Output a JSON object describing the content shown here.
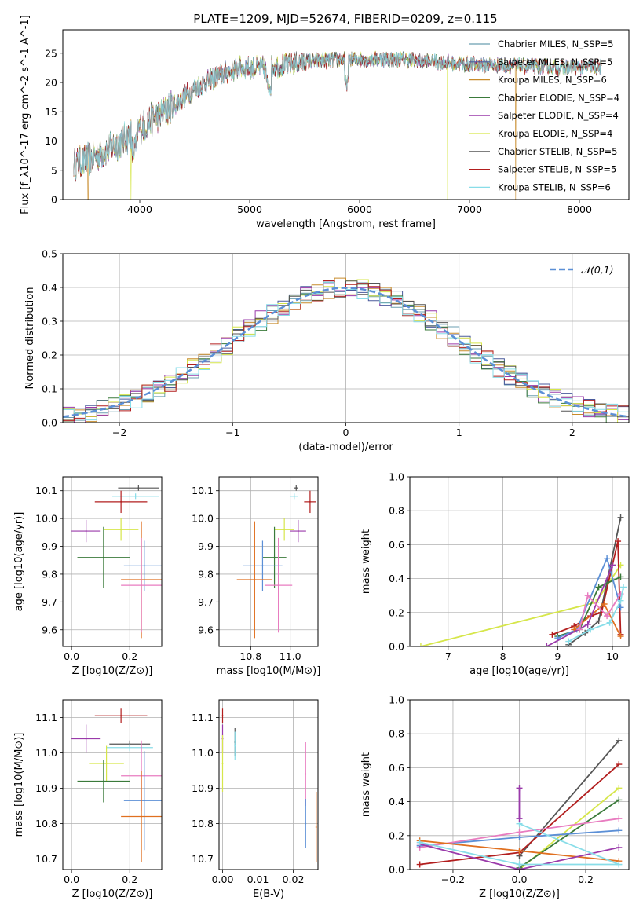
{
  "figure_title": "PLATE=1209, MJD=52674, FIBERID=0209, z=0.115",
  "chart_data": [
    {
      "type": "line",
      "id": "spectrum",
      "xlabel": "wavelength [Angstrom, rest frame]",
      "ylabel": "Flux [f_λ10^-17 erg cm^-2 s^-1 A^-1]",
      "xlim": [
        3300,
        8450
      ],
      "ylim": [
        0,
        29
      ],
      "xticks": [
        4000,
        5000,
        6000,
        7000,
        8000
      ],
      "yticks": [
        0,
        5,
        10,
        15,
        20,
        25
      ],
      "legend_position": "top-right",
      "series": [
        {
          "name": "Chabrier MILES, N_SSP=5",
          "color": "#6b9fb0"
        },
        {
          "name": "Salpeter MILES, N_SSP=5",
          "color": "#4a5a9c"
        },
        {
          "name": "Kroupa MILES, N_SSP=6",
          "color": "#c88b2a"
        },
        {
          "name": "Chabrier ELODIE, N_SSP=4",
          "color": "#3a7a3a"
        },
        {
          "name": "Salpeter ELODIE, N_SSP=4",
          "color": "#9a3aaa"
        },
        {
          "name": "Kroupa ELODIE, N_SSP=4",
          "color": "#d6e64a"
        },
        {
          "name": "Chabrier STELIB, N_SSP=5",
          "color": "#555555"
        },
        {
          "name": "Salpeter STELIB, N_SSP=5",
          "color": "#b21e1e"
        },
        {
          "name": "Kroupa STELIB, N_SSP=6",
          "color": "#88dde8"
        }
      ],
      "continuum": {
        "x": [
          3400,
          3500,
          3650,
          3800,
          3950,
          4100,
          4300,
          4500,
          4700,
          4900,
          5100,
          5300,
          5500,
          5700,
          5900,
          6100,
          6300,
          6500,
          6700,
          6900,
          7100,
          7300,
          7500,
          7700,
          7900,
          8100,
          8200
        ],
        "y": [
          6,
          6.5,
          8,
          9.5,
          11.5,
          13.5,
          16,
          19,
          21,
          22.5,
          22.5,
          23,
          23.5,
          23.8,
          24,
          24,
          24,
          23.8,
          23.5,
          23.2,
          23,
          23,
          22.8,
          22.6,
          22.5,
          22.6,
          22.6
        ]
      },
      "drops": [
        {
          "x": 3530,
          "series": "Kroupa MILES, N_SSP=6"
        },
        {
          "x": 3920,
          "series": "Kroupa ELODIE, N_SSP=4"
        },
        {
          "x": 6800,
          "series": "Kroupa ELODIE, N_SSP=4"
        },
        {
          "x": 7420,
          "series": "Kroupa MILES, N_SSP=6"
        }
      ]
    },
    {
      "type": "histogram",
      "id": "residuals",
      "xlabel": "(data-model)/error",
      "ylabel": "Normed distribution",
      "xlim": [
        -2.5,
        2.5
      ],
      "ylim": [
        0,
        0.5
      ],
      "xticks": [
        -2,
        -1,
        0,
        1,
        2
      ],
      "yticks": [
        0.0,
        0.1,
        0.2,
        0.3,
        0.4,
        0.5
      ],
      "grid": true,
      "legend_position": "top-right",
      "bin_width": 0.1,
      "reference": {
        "name": "𝒩(0,1)",
        "color": "#5b8fd6",
        "style": "dashed"
      }
    },
    {
      "type": "scatter",
      "id": "age-vs-Z",
      "xlabel": "Z [log10(Z/Z⊙)]",
      "ylabel": "age  [log10(age/yr)]",
      "xlim": [
        -0.03,
        0.31
      ],
      "ylim": [
        9.54,
        10.15
      ],
      "xticks": [
        0.0,
        0.2
      ],
      "yticks": [
        9.6,
        9.7,
        9.8,
        9.9,
        10.0,
        10.1
      ],
      "grid": true,
      "points": [
        {
          "x": 0.23,
          "y": 10.11,
          "xerr": 0.07,
          "yerr": 0.01,
          "color": "#555555"
        },
        {
          "x": 0.22,
          "y": 10.08,
          "xerr": 0.08,
          "yerr": 0.01,
          "color": "#88dde8"
        },
        {
          "x": 0.17,
          "y": 10.06,
          "xerr": 0.09,
          "yerr": 0.04,
          "color": "#b21e1e"
        },
        {
          "x": 0.17,
          "y": 9.96,
          "xerr": 0.06,
          "yerr": 0.04,
          "color": "#d6e64a"
        },
        {
          "x": 0.05,
          "y": 9.955,
          "xerr": 0.05,
          "yerr": 0.04,
          "color": "#9a3aaa"
        },
        {
          "x": 0.11,
          "y": 9.86,
          "xerr": 0.09,
          "yerr": 0.11,
          "color": "#3a7a3a"
        },
        {
          "x": 0.25,
          "y": 9.83,
          "xerr": 0.07,
          "yerr": 0.09,
          "color": "#5b8fd6"
        },
        {
          "x": 0.24,
          "y": 9.78,
          "xerr": 0.07,
          "yerr": 0.21,
          "color": "#e07020"
        },
        {
          "x": 0.24,
          "y": 9.76,
          "xerr": 0.07,
          "yerr": 0.17,
          "color": "#e87cc0"
        }
      ]
    },
    {
      "type": "scatter",
      "id": "age-vs-mass",
      "xlabel": "mass [log10(M/M⊙)]",
      "ylabel": "",
      "xlim": [
        10.64,
        11.14
      ],
      "ylim": [
        9.54,
        10.15
      ],
      "xticks": [
        10.8,
        11.0
      ],
      "yticks": [
        9.6,
        9.7,
        9.8,
        9.9,
        10.0,
        10.1
      ],
      "grid": true,
      "points": [
        {
          "x": 11.03,
          "y": 10.11,
          "xerr": 0.01,
          "yerr": 0.01,
          "color": "#555555"
        },
        {
          "x": 11.02,
          "y": 10.08,
          "xerr": 0.02,
          "yerr": 0.01,
          "color": "#88dde8"
        },
        {
          "x": 11.1,
          "y": 10.06,
          "xerr": 0.03,
          "yerr": 0.04,
          "color": "#b21e1e"
        },
        {
          "x": 10.97,
          "y": 9.96,
          "xerr": 0.05,
          "yerr": 0.04,
          "color": "#d6e64a"
        },
        {
          "x": 11.04,
          "y": 9.955,
          "xerr": 0.04,
          "yerr": 0.04,
          "color": "#9a3aaa"
        },
        {
          "x": 10.92,
          "y": 9.86,
          "xerr": 0.06,
          "yerr": 0.11,
          "color": "#3a7a3a"
        },
        {
          "x": 10.86,
          "y": 9.83,
          "xerr": 0.1,
          "yerr": 0.09,
          "color": "#5b8fd6"
        },
        {
          "x": 10.82,
          "y": 9.78,
          "xerr": 0.09,
          "yerr": 0.21,
          "color": "#e07020"
        },
        {
          "x": 10.94,
          "y": 9.76,
          "xerr": 0.07,
          "yerr": 0.17,
          "color": "#e87cc0"
        }
      ]
    },
    {
      "type": "line",
      "id": "weight-vs-age",
      "xlabel": "age  [log10(age/yr)]",
      "ylabel": "mass weight",
      "xlim": [
        6.3,
        10.3
      ],
      "ylim": [
        0,
        1
      ],
      "xticks": [
        7,
        8,
        9,
        10
      ],
      "yticks": [
        0.0,
        0.2,
        0.4,
        0.6,
        0.8,
        1.0
      ],
      "grid": true,
      "series": [
        {
          "color": "#d6e64a",
          "x": [
            6.5,
            9.7,
            10.15
          ],
          "y": [
            0.0,
            0.26,
            0.48
          ]
        },
        {
          "color": "#555555",
          "x": [
            9.2,
            9.5,
            9.75,
            10.15
          ],
          "y": [
            0.01,
            0.08,
            0.15,
            0.76
          ]
        },
        {
          "color": "#b21e1e",
          "x": [
            8.9,
            9.3,
            9.6,
            9.8,
            10.1,
            10.15
          ],
          "y": [
            0.07,
            0.12,
            0.18,
            0.2,
            0.62,
            0.07
          ]
        },
        {
          "color": "#3a7a3a",
          "x": [
            9.0,
            9.4,
            9.75,
            10.15
          ],
          "y": [
            0.06,
            0.1,
            0.35,
            0.41
          ]
        },
        {
          "color": "#5b8fd6",
          "x": [
            9.0,
            9.35,
            9.9,
            10.15
          ],
          "y": [
            0.05,
            0.1,
            0.52,
            0.23
          ]
        },
        {
          "color": "#e07020",
          "x": [
            9.3,
            9.85,
            10.15
          ],
          "y": [
            0.1,
            0.25,
            0.06
          ]
        },
        {
          "color": "#9a3aaa",
          "x": [
            8.8,
            9.55,
            10.0
          ],
          "y": [
            0.0,
            0.13,
            0.48
          ]
        },
        {
          "color": "#e87cc0",
          "x": [
            9.4,
            9.55,
            9.9,
            10.15
          ],
          "y": [
            0.1,
            0.3,
            0.18,
            0.31
          ]
        },
        {
          "color": "#88dde8",
          "x": [
            9.2,
            9.6,
            9.95,
            10.15,
            10.2
          ],
          "y": [
            0.03,
            0.1,
            0.14,
            0.27,
            0.35
          ]
        }
      ]
    },
    {
      "type": "scatter",
      "id": "mass-vs-Z",
      "xlabel": "Z [log10(Z/Z⊙)]",
      "ylabel": "mass [log10(M/M⊙)]",
      "xlim": [
        -0.03,
        0.31
      ],
      "ylim": [
        10.67,
        11.15
      ],
      "xticks": [
        0.0,
        0.2
      ],
      "yticks": [
        10.7,
        10.8,
        10.9,
        11.0,
        11.1
      ],
      "grid": true,
      "points": [
        {
          "x": 0.17,
          "y": 11.105,
          "xerr": 0.09,
          "yerr": 0.02,
          "color": "#b21e1e"
        },
        {
          "x": 0.05,
          "y": 11.04,
          "xerr": 0.05,
          "yerr": 0.04,
          "color": "#9a3aaa"
        },
        {
          "x": 0.2,
          "y": 11.025,
          "xerr": 0.07,
          "yerr": 0.01,
          "color": "#555555"
        },
        {
          "x": 0.2,
          "y": 11.015,
          "xerr": 0.08,
          "yerr": 0.01,
          "color": "#88dde8"
        },
        {
          "x": 0.12,
          "y": 10.97,
          "xerr": 0.06,
          "yerr": 0.05,
          "color": "#d6e64a"
        },
        {
          "x": 0.24,
          "y": 10.935,
          "xerr": 0.07,
          "yerr": 0.1,
          "color": "#e87cc0"
        },
        {
          "x": 0.11,
          "y": 10.92,
          "xerr": 0.09,
          "yerr": 0.06,
          "color": "#3a7a3a"
        },
        {
          "x": 0.25,
          "y": 10.865,
          "xerr": 0.07,
          "yerr": 0.14,
          "color": "#5b8fd6"
        },
        {
          "x": 0.24,
          "y": 10.82,
          "xerr": 0.07,
          "yerr": 0.13,
          "color": "#e07020"
        }
      ]
    },
    {
      "type": "scatter",
      "id": "mass-vs-EBV",
      "xlabel": "E(B-V)",
      "ylabel": "",
      "xlim": [
        -0.001,
        0.027
      ],
      "ylim": [
        10.67,
        11.15
      ],
      "xticks": [
        0.0,
        0.01,
        0.02
      ],
      "yticks": [
        10.7,
        10.8,
        10.9,
        11.0,
        11.1
      ],
      "grid": true,
      "points": [
        {
          "x": 0.0,
          "y": 11.105,
          "xerr": 0,
          "yerr": 0.02,
          "color": "#b21e1e"
        },
        {
          "x": 0.0,
          "y": 11.04,
          "xerr": 0,
          "yerr": 0.04,
          "color": "#9a3aaa"
        },
        {
          "x": 0.0,
          "y": 10.97,
          "xerr": 0,
          "yerr": 0.08,
          "color": "#d6e64a"
        },
        {
          "x": 0.0035,
          "y": 11.03,
          "xerr": 0,
          "yerr": 0.04,
          "color": "#555555"
        },
        {
          "x": 0.0035,
          "y": 11.02,
          "xerr": 0,
          "yerr": 0.04,
          "color": "#88dde8"
        },
        {
          "x": 0.0235,
          "y": 10.94,
          "xerr": 0,
          "yerr": 0.09,
          "color": "#e87cc0"
        },
        {
          "x": 0.0235,
          "y": 10.8,
          "xerr": 0,
          "yerr": 0.07,
          "color": "#5b8fd6"
        },
        {
          "x": 0.0265,
          "y": 10.79,
          "xerr": 0,
          "yerr": 0.1,
          "color": "#e07020"
        }
      ]
    },
    {
      "type": "line",
      "id": "weight-vs-Z",
      "xlabel": "Z [log10(Z/Z⊙)]",
      "ylabel": "mass weight",
      "xlim": [
        -0.33,
        0.33
      ],
      "ylim": [
        0,
        1
      ],
      "xticks": [
        -0.2,
        0.0,
        0.2
      ],
      "yticks": [
        0.0,
        0.2,
        0.4,
        0.6,
        0.8,
        1.0
      ],
      "grid": true,
      "series": [
        {
          "color": "#555555",
          "x": [
            0.0,
            0.3
          ],
          "y": [
            0.08,
            0.76
          ]
        },
        {
          "color": "#b21e1e",
          "x": [
            -0.3,
            0.0,
            0.3
          ],
          "y": [
            0.03,
            0.1,
            0.62
          ]
        },
        {
          "color": "#d6e64a",
          "x": [
            0.0,
            0.3
          ],
          "y": [
            0.0,
            0.48
          ]
        },
        {
          "color": "#3a7a3a",
          "x": [
            0.0,
            0.3
          ],
          "y": [
            0.01,
            0.41
          ]
        },
        {
          "color": "#5b8fd6",
          "x": [
            -0.3,
            0.0,
            0.3
          ],
          "y": [
            0.14,
            0.19,
            0.23
          ]
        },
        {
          "color": "#e87cc0",
          "x": [
            -0.3,
            0.0,
            0.3
          ],
          "y": [
            0.13,
            0.22,
            0.3
          ]
        },
        {
          "color": "#e07020",
          "x": [
            -0.3,
            0.0,
            0.3
          ],
          "y": [
            0.17,
            0.11,
            0.05
          ]
        },
        {
          "color": "#9a3aaa",
          "x": [
            -0.3,
            0.0,
            0.3
          ],
          "y": [
            0.15,
            0.0,
            0.13
          ]
        },
        {
          "color": "#88dde8",
          "x": [
            -0.3,
            0.0,
            0.3
          ],
          "y": [
            0.16,
            0.03,
            0.03
          ]
        },
        {
          "color": "#88dde8",
          "x": [
            0.0,
            0.3
          ],
          "y": [
            0.27,
            0.03
          ]
        },
        {
          "color": "#9a3aaa",
          "x": [
            0.0,
            0.0
          ],
          "y": [
            0.3,
            0.48
          ]
        }
      ]
    }
  ]
}
